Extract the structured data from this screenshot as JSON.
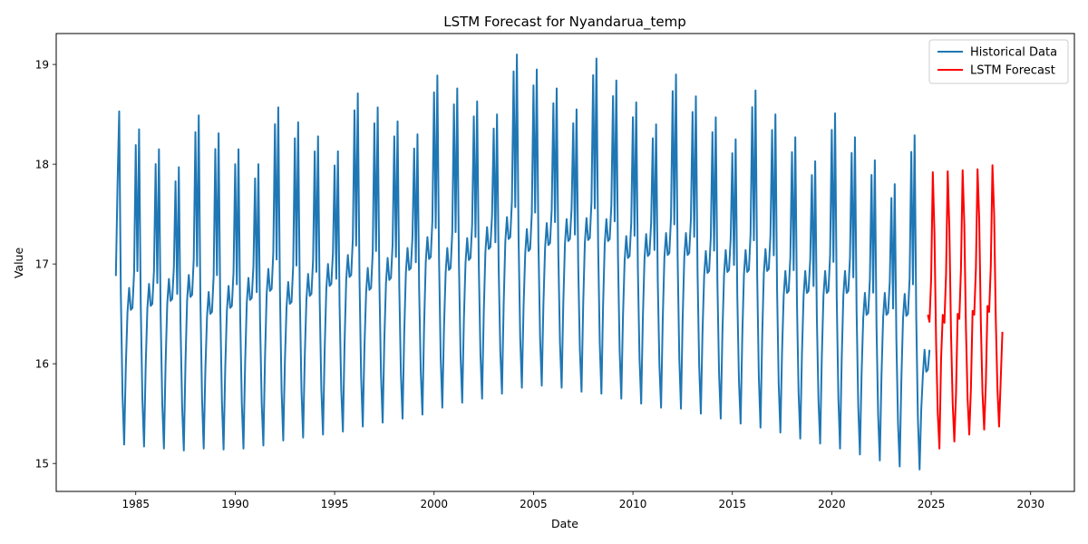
{
  "chart_data": {
    "type": "line",
    "title": "LSTM Forecast for Nyandarua_temp",
    "xlabel": "Date",
    "ylabel": "Value",
    "xlim": [
      1981.0,
      2032.2
    ],
    "ylim": [
      14.72,
      19.31
    ],
    "xticks": [
      1985,
      1990,
      1995,
      2000,
      2005,
      2010,
      2015,
      2020,
      2025,
      2030
    ],
    "yticks": [
      15,
      16,
      17,
      18,
      19
    ],
    "grid": false,
    "legend_position": "top-right",
    "series": [
      {
        "name": "Historical Data",
        "color": "#1f77b4",
        "x_start": 1984.0,
        "step": 0.08333,
        "peaks": [
          18.53,
          18.35,
          18.15,
          17.97,
          18.49,
          18.31,
          18.15,
          18.0,
          18.57,
          18.42,
          18.28,
          18.13,
          18.71,
          18.57,
          18.43,
          18.3,
          18.89,
          18.76,
          18.63,
          18.5,
          19.1,
          18.95,
          18.76,
          18.55,
          19.06,
          18.84,
          18.62,
          18.4,
          18.9,
          18.68,
          18.47,
          18.25,
          18.74,
          18.5,
          18.27,
          18.03,
          18.51,
          18.27,
          18.04,
          17.8,
          18.29
        ],
        "troughs": [
          15.19,
          15.17,
          15.15,
          15.13,
          15.15,
          15.14,
          15.15,
          15.18,
          15.23,
          15.26,
          15.29,
          15.32,
          15.37,
          15.41,
          15.45,
          15.49,
          15.56,
          15.61,
          15.65,
          15.7,
          15.76,
          15.78,
          15.76,
          15.72,
          15.7,
          15.65,
          15.6,
          15.56,
          15.55,
          15.5,
          15.45,
          15.4,
          15.36,
          15.31,
          15.25,
          15.2,
          15.15,
          15.09,
          15.03,
          14.97,
          14.94
        ],
        "shoulders": [
          16.76,
          16.8,
          16.85,
          16.89,
          16.72,
          16.78,
          16.86,
          16.95,
          16.82,
          16.9,
          17.0,
          17.09,
          16.96,
          17.06,
          17.16,
          17.27,
          17.16,
          17.26,
          17.37,
          17.47,
          17.35,
          17.41,
          17.45,
          17.46,
          17.45,
          17.28,
          17.3,
          17.31,
          17.31,
          17.13,
          17.14,
          17.14,
          17.15,
          16.93,
          16.93,
          16.93,
          16.93,
          16.71,
          16.71,
          16.7
        ],
        "end_value": 16.14
      },
      {
        "name": "LSTM Forecast",
        "color": "#ff0000",
        "x_start": 2024.83,
        "step": 0.08333,
        "values": [
          16.49,
          16.42,
          16.85,
          17.92,
          17.3,
          16.2,
          15.5,
          15.15,
          16.05,
          16.49,
          16.41,
          16.9,
          17.93,
          17.35,
          16.3,
          15.6,
          15.22,
          15.7,
          16.5,
          16.45,
          16.95,
          17.94,
          17.4,
          16.35,
          15.65,
          15.29,
          15.75,
          16.53,
          16.49,
          16.95,
          17.95,
          17.45,
          16.4,
          15.7,
          15.34,
          15.8,
          16.58,
          16.52,
          16.98,
          17.99,
          17.5,
          16.45,
          15.75,
          15.37,
          15.85,
          16.32
        ]
      }
    ]
  }
}
